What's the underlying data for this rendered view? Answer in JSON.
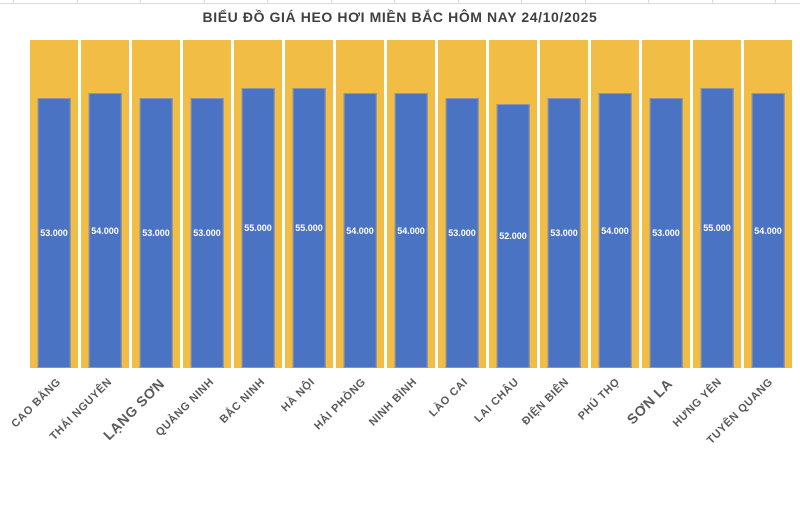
{
  "chart": {
    "title": "BIỂU ĐỒ GIÁ HEO HƠI MIỀN BẮC HÔM NAY 24/10/2025"
  },
  "chart_data": {
    "type": "bar",
    "title": "BIỂU ĐỒ GIÁ HEO HƠI MIỀN BẮC HÔM NAY 24/10/2025",
    "categories": [
      "CAO BẰNG",
      "THÁI NGUYÊN",
      "LẠNG SƠN",
      "QUẢNG NINH",
      "BẮC NINH",
      "HÀ NỘI",
      "HẢI PHÒNG",
      "NINH BÌNH",
      "LÀO CAI",
      "LAI CHÂU",
      "ĐIỆN BIÊN",
      "PHÚ THỌ",
      "SƠN LA",
      "HƯNG YÊN",
      "TUYÊN QUANG"
    ],
    "values": [
      53000,
      54000,
      53000,
      53000,
      55000,
      55000,
      54000,
      54000,
      53000,
      52000,
      53000,
      54000,
      53000,
      55000,
      54000
    ],
    "value_labels": [
      "53.000",
      "54.000",
      "53.000",
      "53.000",
      "55.000",
      "55.000",
      "54.000",
      "54.000",
      "53.000",
      "52.000",
      "53.000",
      "54.000",
      "53.000",
      "55.000",
      "54.000"
    ],
    "xlabel": "",
    "ylabel": "",
    "ylim": [
      0,
      64500
    ],
    "grid": false,
    "legend": null,
    "x_label_rotation_deg": -45,
    "large_label_indices": [
      2,
      12
    ],
    "colors": {
      "column_background": "#F2BD44",
      "bar_fill": "#4B73C4",
      "bar_border": "#8D94AB",
      "value_label_text": "#FFFFFF",
      "axis_label_text": "#595959",
      "title_text": "#404040",
      "sheet_line": "#D9D9D9"
    }
  }
}
